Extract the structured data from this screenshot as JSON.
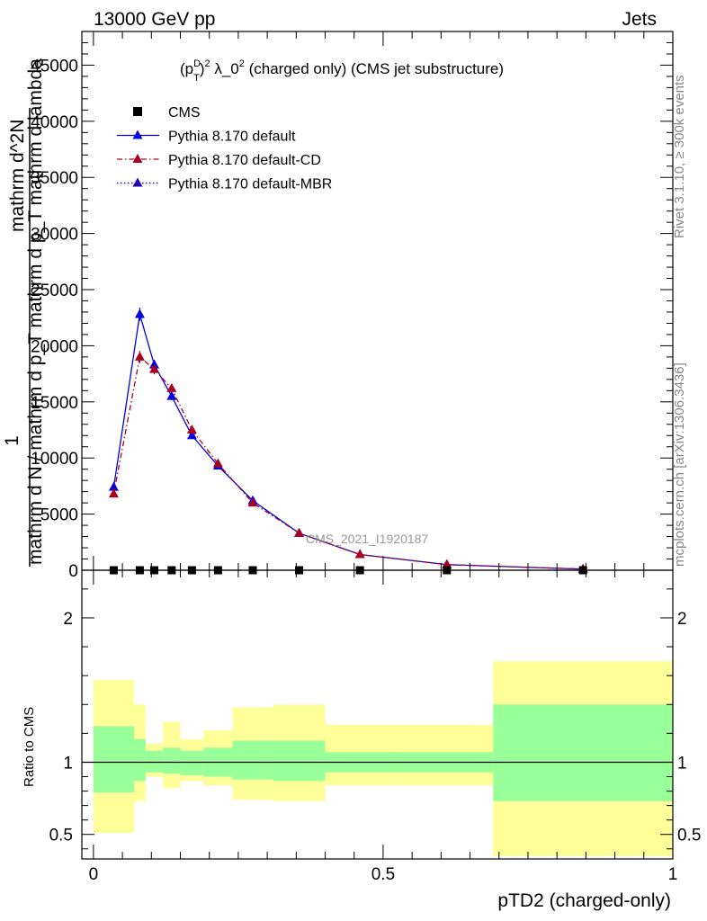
{
  "header": {
    "left": "13000 GeV pp",
    "right": "Jets"
  },
  "title": "(p_T^D)^2 λ_0^2 (charged only) (CMS jet substructure)",
  "title_parts": {
    "a": "(p",
    "sup_d": "D",
    "sub_t": "T",
    "b": ")",
    "sup_2a": "2",
    "c": " λ_0",
    "sup_2b": "2",
    "d": " (charged only) (CMS jet substructure)"
  },
  "side_labels": {
    "rivet": "Rivet 3.1.10, ≥ 300k events",
    "mcplots": "mcplots.cern.ch [arXiv:1306.3436]"
  },
  "watermark": "CMS_2021_I1920187",
  "ylabel_top": {
    "one": "1",
    "numerator": "mathrm d^2N",
    "denominator": "mathrm d N / mathrm d p_T mathrm d p_T mathrm d lambda"
  },
  "ylabel_ratio": "Ratio to CMS",
  "xlabel": "pTD2 (charged-only)",
  "colors": {
    "cms": "#000000",
    "default": "#0000dd",
    "cd": "#aa0022",
    "mbr": "#2200aa",
    "band_inner": "#99ff99",
    "band_outer": "#ffff99"
  },
  "legend": [
    {
      "label": "CMS",
      "style": "square"
    },
    {
      "label": "Pythia 8.170 default",
      "style": "solid"
    },
    {
      "label": "Pythia 8.170 default-CD",
      "style": "dashdot"
    },
    {
      "label": "Pythia 8.170 default-MBR",
      "style": "dotted"
    }
  ],
  "chart_data": {
    "type": "line",
    "main": {
      "xlim": [
        -0.02,
        1.0
      ],
      "ylim": [
        0,
        48000
      ],
      "yticks": [
        0,
        5000,
        10000,
        15000,
        20000,
        25000,
        30000,
        35000,
        40000,
        45000
      ],
      "ytick_labels": [
        "0",
        "5000",
        "10000",
        "15000",
        "20000",
        "25000",
        "30000",
        "35000",
        "40000",
        "45000"
      ],
      "x": [
        0.035,
        0.08,
        0.105,
        0.135,
        0.17,
        0.215,
        0.275,
        0.355,
        0.46,
        0.61,
        0.845
      ],
      "cms": [
        0,
        0,
        0,
        0,
        0,
        0,
        0,
        0,
        0,
        0,
        0
      ],
      "series": [
        {
          "name": "Pythia 8.170 default",
          "values": [
            7400,
            22800,
            18300,
            15500,
            12000,
            9300,
            6200,
            3300,
            1400,
            500,
            100
          ],
          "errors": [
            300,
            600,
            450,
            350,
            280,
            220,
            170,
            120,
            70,
            40,
            20
          ]
        },
        {
          "name": "Pythia 8.170 default-CD",
          "values": [
            6800,
            19000,
            17900,
            16200,
            12500,
            9500,
            6000,
            3300,
            1400,
            500,
            100
          ],
          "errors": [
            300,
            550,
            450,
            350,
            280,
            220,
            170,
            120,
            70,
            40,
            20
          ]
        }
      ]
    },
    "ratio": {
      "xlim": [
        -0.02,
        1.0
      ],
      "ylim": [
        0.33,
        2.33
      ],
      "yticks": [
        0.5,
        1,
        2
      ],
      "ytick_labels": [
        "0.5",
        "1",
        "2"
      ],
      "xticks": [
        0,
        0.5,
        1
      ],
      "xtick_labels": [
        "0",
        "0.5",
        "1"
      ],
      "band_edges": [
        0,
        0.07,
        0.09,
        0.12,
        0.15,
        0.19,
        0.24,
        0.31,
        0.4,
        0.52,
        0.69,
        1.0
      ],
      "inner_low": [
        0.79,
        0.87,
        0.93,
        0.92,
        0.91,
        0.9,
        0.88,
        0.87,
        0.93,
        0.93,
        0.73
      ],
      "inner_high": [
        1.25,
        1.16,
        1.08,
        1.1,
        1.08,
        1.1,
        1.15,
        1.15,
        1.07,
        1.07,
        1.4
      ],
      "outer_low": [
        0.51,
        0.73,
        0.9,
        0.82,
        0.87,
        0.84,
        0.74,
        0.73,
        0.84,
        0.84,
        0.35
      ],
      "outer_high": [
        1.57,
        1.4,
        1.13,
        1.28,
        1.16,
        1.22,
        1.38,
        1.4,
        1.26,
        1.26,
        1.7
      ],
      "unity": 1
    }
  }
}
